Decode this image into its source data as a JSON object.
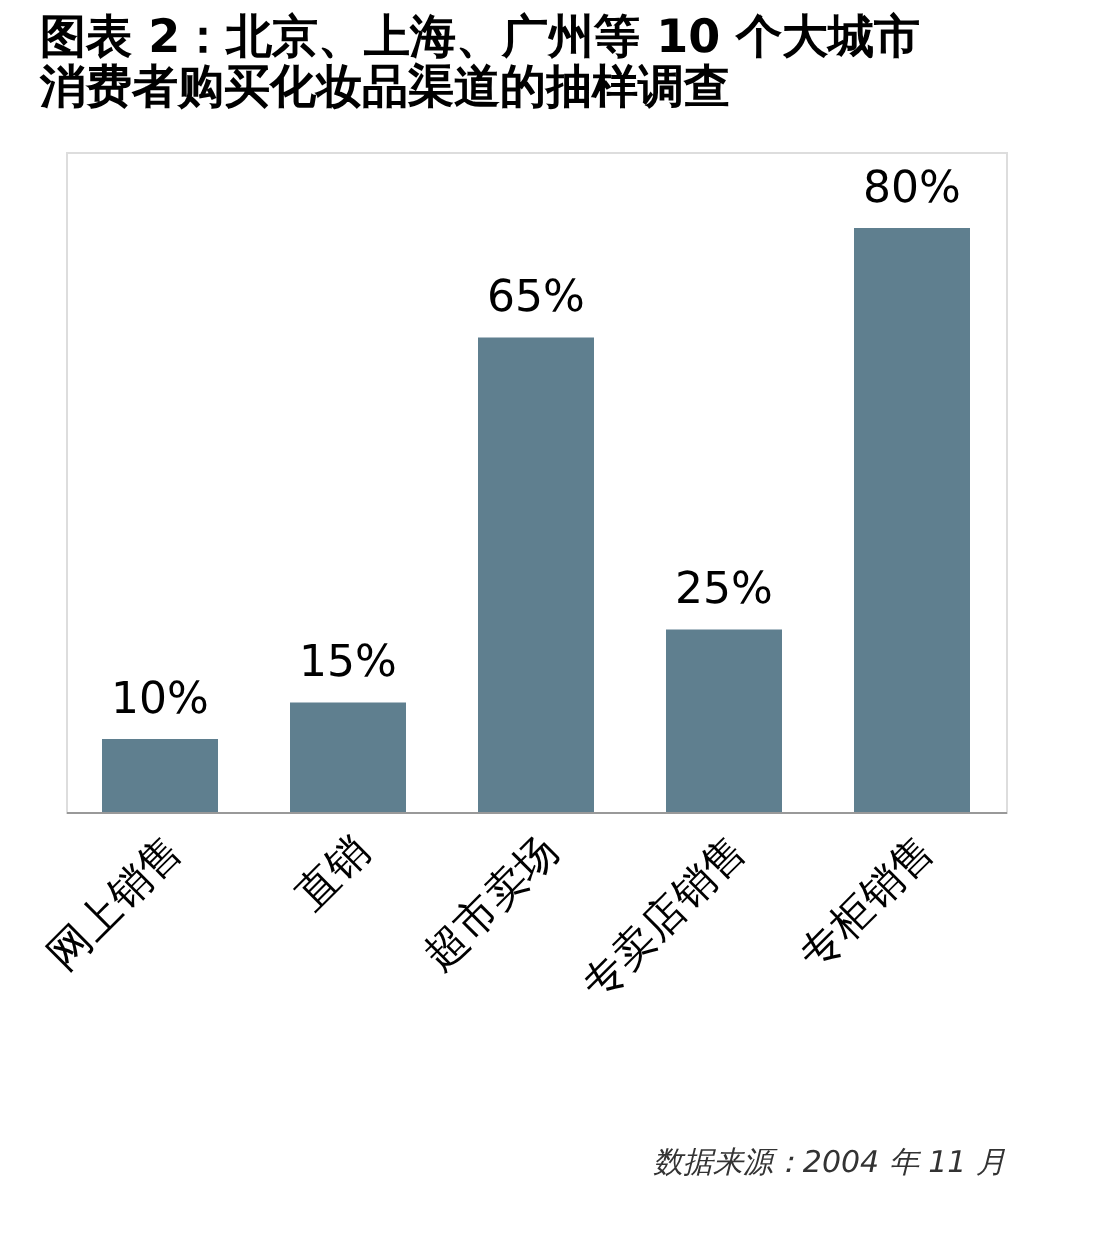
{
  "chart_data": {
    "type": "bar",
    "title": [
      "图表 2：北京、上海、广州等 10 个大城市",
      "消费者购买化妆品渠道的抽样调查"
    ],
    "categories": [
      "网上销售",
      "直销",
      "超市卖场",
      "专卖店销售",
      "专柜销售"
    ],
    "values": [
      10,
      15,
      65,
      25,
      80
    ],
    "value_labels": [
      "10%",
      "15%",
      "65%",
      "25%",
      "80%"
    ],
    "color": "#5f7f8f",
    "annotations": [
      "数据来源：2004 年 11 月"
    ]
  }
}
